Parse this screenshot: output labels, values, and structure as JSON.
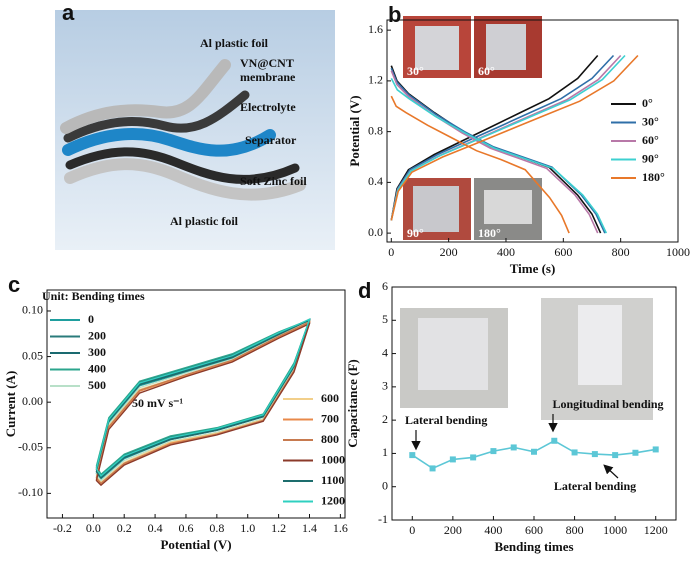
{
  "diagram": {
    "label": "a",
    "layers": [
      [
        "Al plastic foil"
      ],
      [
        "VN@CNT",
        "membrane"
      ],
      [
        "Electrolyte"
      ],
      [
        "Separator"
      ],
      [
        "Soft Zinc foil"
      ],
      [
        "Al plastic foil"
      ]
    ]
  },
  "chart_data": [
    {
      "type": "line",
      "panel_label": "b",
      "x_label": "Time (s)",
      "y_label": "Potential (V)",
      "insets": [
        "30°",
        "60°",
        "90°",
        "180°"
      ],
      "xlim": [
        -15,
        1000
      ],
      "ylim": [
        -0.07,
        1.68
      ],
      "xticks": [
        0,
        200,
        400,
        600,
        800,
        1000
      ],
      "yticks": [
        {
          "value": 0,
          "label": "0.0"
        },
        0.4,
        0.8,
        1.2,
        1.6
      ],
      "series": [
        {
          "name": "0°",
          "color": "#111111",
          "charge": {
            "x": [
              0,
              20,
              60,
              150,
              250,
              350,
              450,
              550,
              650,
              720
            ],
            "values": [
              0.1,
              0.35,
              0.5,
              0.62,
              0.73,
              0.84,
              0.95,
              1.06,
              1.22,
              1.4
            ]
          },
          "discharge": {
            "x": [
              0,
              20,
              60,
              150,
              250,
              350,
              450,
              550,
              650,
              700,
              730
            ],
            "values": [
              1.32,
              1.2,
              1.1,
              0.95,
              0.8,
              0.68,
              0.6,
              0.52,
              0.3,
              0.15,
              0.0
            ]
          }
        },
        {
          "name": "30°",
          "color": "#2f6fa8",
          "charge": {
            "x": [
              0,
              22,
              65,
              161,
              269,
              377,
              484,
              592,
              700,
              775
            ],
            "values": [
              0.1,
              0.35,
              0.5,
              0.62,
              0.73,
              0.84,
              0.95,
              1.06,
              1.22,
              1.4
            ]
          },
          "discharge": {
            "x": [
              0,
              20,
              61,
              153,
              255,
              357,
              459,
              561,
              663,
              714,
              745
            ],
            "values": [
              1.3,
              1.19,
              1.09,
              0.94,
              0.8,
              0.68,
              0.6,
              0.52,
              0.3,
              0.15,
              0.0
            ]
          }
        },
        {
          "name": "60°",
          "color": "#b878a8",
          "charge": {
            "x": [
              0,
              22,
              67,
              167,
              278,
              389,
              500,
              611,
              722,
              800
            ],
            "values": [
              0.1,
              0.34,
              0.49,
              0.61,
              0.72,
              0.83,
              0.94,
              1.05,
              1.21,
              1.4
            ]
          },
          "discharge": {
            "x": [
              0,
              20,
              59,
              148,
              247,
              345,
              444,
              542,
              641,
              690,
              720
            ],
            "values": [
              1.28,
              1.17,
              1.08,
              0.93,
              0.79,
              0.67,
              0.59,
              0.51,
              0.3,
              0.15,
              0.0
            ]
          }
        },
        {
          "name": "90°",
          "color": "#3dd0d0",
          "charge": {
            "x": [
              0,
              23,
              68,
              170,
              283,
              396,
              509,
              623,
              736,
              815
            ],
            "values": [
              0.1,
              0.34,
              0.49,
              0.61,
              0.72,
              0.83,
              0.94,
              1.05,
              1.21,
              1.4
            ]
          },
          "discharge": {
            "x": [
              0,
              21,
              62,
              154,
              257,
              359,
              462,
              565,
              668,
              719,
              750
            ],
            "values": [
              1.22,
              1.13,
              1.06,
              0.92,
              0.79,
              0.67,
              0.59,
              0.51,
              0.3,
              0.15,
              0.0
            ]
          }
        },
        {
          "name": "180°",
          "color": "#e8782a",
          "charge": {
            "x": [
              0,
              24,
              72,
              179,
              299,
              418,
              537,
              657,
              776,
              860
            ],
            "values": [
              0.1,
              0.33,
              0.48,
              0.6,
              0.71,
              0.82,
              0.93,
              1.04,
              1.2,
              1.4
            ]
          },
          "discharge": {
            "x": [
              0,
              17,
              51,
              127,
              212,
              297,
              382,
              467,
              552,
              594,
              620
            ],
            "values": [
              1.08,
              1.0,
              0.95,
              0.85,
              0.75,
              0.65,
              0.58,
              0.5,
              0.28,
              0.14,
              0.0
            ]
          }
        }
      ]
    },
    {
      "type": "loop",
      "panel_label": "c",
      "x_label": "Potential (V)",
      "y_label": "Current (A)",
      "legend_title": "Unit: Bending times",
      "annotation": "50 mV s⁻¹",
      "xlim": [
        -0.3,
        1.63
      ],
      "ylim": [
        -0.127,
        0.123
      ],
      "xticks": [
        -0.2,
        {
          "value": 0,
          "label": "0.0"
        },
        0.2,
        0.4,
        0.6,
        0.8,
        {
          "value": 1,
          "label": "1.0"
        },
        1.2,
        1.4,
        1.6
      ],
      "yticks": [
        {
          "value": -0.1,
          "label": "-0.10"
        },
        {
          "value": -0.05,
          "label": "-0.05"
        },
        {
          "value": 0,
          "label": "0.00"
        },
        {
          "value": 0.05,
          "label": "0.05"
        },
        {
          "value": 0.1,
          "label": "0.10"
        }
      ],
      "x": [
        0.02,
        0.1,
        0.3,
        0.6,
        0.9,
        1.2,
        1.35,
        1.4,
        1.3,
        1.1,
        0.8,
        0.5,
        0.2,
        0.05
      ],
      "series": [
        {
          "name": "0",
          "color": "#1f9e9e",
          "values": [
            -0.078,
            -0.022,
            0.018,
            0.033,
            0.048,
            0.074,
            0.085,
            0.089,
            0.038,
            -0.016,
            -0.031,
            -0.041,
            -0.062,
            -0.084
          ]
        },
        {
          "name": "200",
          "color": "#2a7b7b",
          "values": [
            -0.072,
            -0.018,
            0.022,
            0.037,
            0.052,
            0.076,
            0.087,
            0.091,
            0.042,
            -0.014,
            -0.029,
            -0.038,
            -0.058,
            -0.08
          ]
        },
        {
          "name": "300",
          "color": "#1a6a70",
          "values": [
            -0.074,
            -0.02,
            0.02,
            0.035,
            0.05,
            0.075,
            0.086,
            0.09,
            0.04,
            -0.015,
            -0.03,
            -0.04,
            -0.06,
            -0.082
          ]
        },
        {
          "name": "400",
          "color": "#2ba58d",
          "values": [
            -0.07,
            -0.017,
            0.023,
            0.038,
            0.053,
            0.077,
            0.087,
            0.09,
            0.043,
            -0.013,
            -0.028,
            -0.037,
            -0.057,
            -0.079
          ]
        },
        {
          "name": "500",
          "color": "#b8e0c8",
          "values": [
            -0.08,
            -0.024,
            0.016,
            0.032,
            0.047,
            0.073,
            0.085,
            0.088,
            0.036,
            -0.018,
            -0.033,
            -0.043,
            -0.064,
            -0.086
          ]
        },
        {
          "name": "600",
          "color": "#f2cf8a",
          "values": [
            -0.082,
            -0.026,
            0.014,
            0.03,
            0.046,
            0.072,
            0.084,
            0.088,
            0.035,
            -0.019,
            -0.034,
            -0.044,
            -0.066,
            -0.088
          ]
        },
        {
          "name": "700",
          "color": "#e8894a",
          "values": [
            -0.085,
            -0.028,
            0.012,
            0.029,
            0.045,
            0.071,
            0.083,
            0.087,
            0.034,
            -0.02,
            -0.035,
            -0.045,
            -0.068,
            -0.09
          ]
        },
        {
          "name": "800",
          "color": "#c77a4f",
          "values": [
            -0.083,
            -0.027,
            0.013,
            0.03,
            0.046,
            0.072,
            0.084,
            0.088,
            0.035,
            -0.02,
            -0.035,
            -0.046,
            -0.067,
            -0.089
          ]
        },
        {
          "name": "1000",
          "color": "#8b3a2a",
          "values": [
            -0.086,
            -0.03,
            0.01,
            0.028,
            0.044,
            0.07,
            0.082,
            0.086,
            0.033,
            -0.021,
            -0.036,
            -0.047,
            -0.069,
            -0.091
          ]
        },
        {
          "name": "1100",
          "color": "#1d6d6d",
          "values": [
            -0.076,
            -0.021,
            0.019,
            0.034,
            0.049,
            0.074,
            0.086,
            0.09,
            0.039,
            -0.016,
            -0.031,
            -0.041,
            -0.061,
            -0.083
          ]
        },
        {
          "name": "1200",
          "color": "#2fd0c0",
          "values": [
            -0.073,
            -0.019,
            0.021,
            0.036,
            0.051,
            0.076,
            0.087,
            0.091,
            0.041,
            -0.014,
            -0.029,
            -0.039,
            -0.059,
            -0.081
          ]
        }
      ]
    },
    {
      "type": "scatter-line",
      "panel_label": "d",
      "x_label": "Bending times",
      "y_label": "Capacitance (F)",
      "annotations": [
        "Lateral bending",
        "Longitudinal bending",
        "Lateral bending"
      ],
      "xlim": [
        -100,
        1300
      ],
      "ylim": [
        -1,
        6
      ],
      "xticks": [
        0,
        200,
        400,
        600,
        800,
        1000,
        1200
      ],
      "yticks": [
        -1,
        0,
        1,
        2,
        3,
        4,
        5,
        6
      ],
      "color": "#5cc7d6",
      "x": [
        0,
        100,
        200,
        300,
        400,
        500,
        600,
        700,
        800,
        900,
        1000,
        1100,
        1200
      ],
      "values": [
        0.95,
        0.55,
        0.82,
        0.88,
        1.07,
        1.18,
        1.05,
        1.38,
        1.03,
        0.98,
        0.95,
        1.02,
        1.12
      ]
    }
  ]
}
